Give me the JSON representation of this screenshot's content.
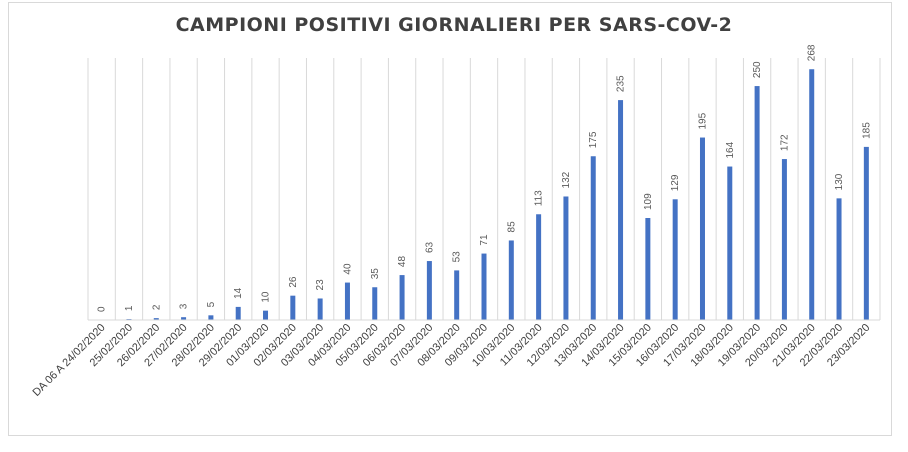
{
  "chart_data": {
    "type": "bar",
    "title": "CAMPIONI POSITIVI GIORNALIERI PER SARS-COV-2",
    "xlabel": "",
    "ylabel": "",
    "ylim": [
      0,
      280
    ],
    "grid": "vertical",
    "legend": "none",
    "bar_color": "#4472c4",
    "categories": [
      "DA 06 A 24/02/2020",
      "25/02/2020",
      "26/02/2020",
      "27/02/2020",
      "28/02/2020",
      "29/02/2020",
      "01/03/2020",
      "02/03/2020",
      "03/03/2020",
      "04/03/2020",
      "05/03/2020",
      "06/03/2020",
      "07/03/2020",
      "08/03/2020",
      "09/03/2020",
      "10/03/2020",
      "11/03/2020",
      "12/03/2020",
      "13/03/2020",
      "14/03/2020",
      "15/03/2020",
      "16/03/2020",
      "17/03/2020",
      "18/03/2020",
      "19/03/2020",
      "20/03/2020",
      "21/03/2020",
      "22/03/2020",
      "23/03/2020"
    ],
    "values": [
      0,
      1,
      2,
      3,
      5,
      14,
      10,
      26,
      23,
      40,
      35,
      48,
      63,
      53,
      71,
      85,
      113,
      132,
      175,
      235,
      109,
      129,
      195,
      164,
      250,
      172,
      268,
      130,
      185
    ]
  }
}
